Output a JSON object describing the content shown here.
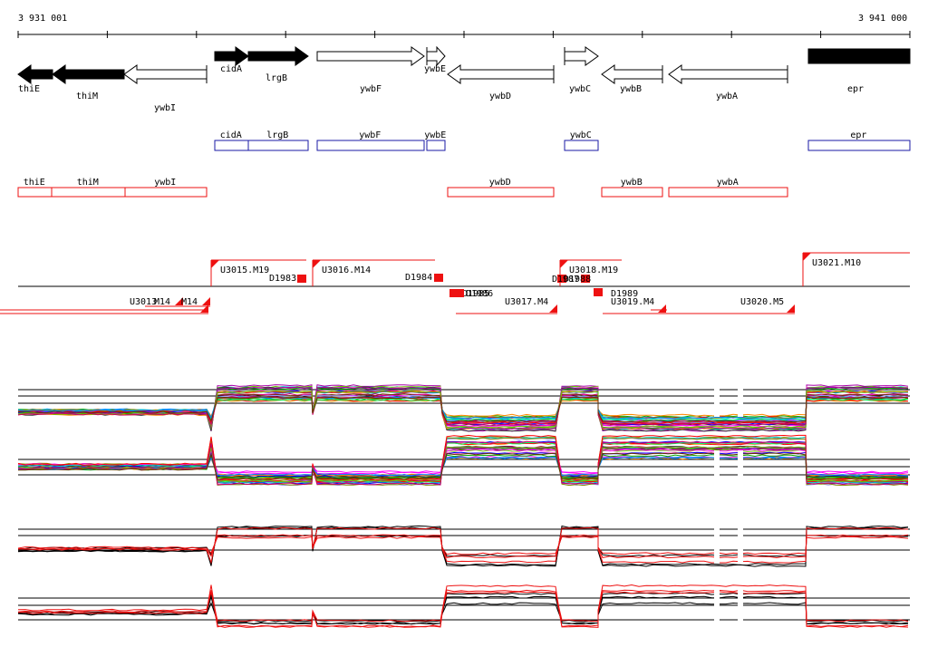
{
  "coords": {
    "start": "3 931 001",
    "end": "3 941 000"
  },
  "colors": {
    "black": "#000000",
    "white": "#ffffff",
    "blue": "#1a1aa6",
    "red": "#ee1111"
  },
  "genes": [
    {
      "name": "thiE",
      "strand": "-",
      "filled": true
    },
    {
      "name": "thiM",
      "strand": "-",
      "filled": true
    },
    {
      "name": "ywbI",
      "strand": "-",
      "filled": false
    },
    {
      "name": "cidA",
      "strand": "+",
      "filled": true
    },
    {
      "name": "lrgB",
      "strand": "+",
      "filled": true
    },
    {
      "name": "ywbF",
      "strand": "+",
      "filled": false
    },
    {
      "name": "ywbE",
      "strand": "+",
      "filled": false
    },
    {
      "name": "ywbD",
      "strand": "-",
      "filled": false
    },
    {
      "name": "ywbC",
      "strand": "+",
      "filled": false
    },
    {
      "name": "ywbB",
      "strand": "-",
      "filled": false
    },
    {
      "name": "ywbA",
      "strand": "-",
      "filled": false
    },
    {
      "name": "epr",
      "strand": "+",
      "filled": true
    }
  ],
  "plus_track_labels": [
    "cidA",
    "lrgB",
    "ywbF",
    "ywbE",
    "ywbC",
    "epr"
  ],
  "minus_track_labels": [
    "thiE",
    "thiM",
    "ywbI",
    "ywbD",
    "ywbB",
    "ywbA"
  ],
  "segments_upper": [
    "U3015.M19",
    "U3016.M14",
    "U3018.M19",
    "U3021.M10"
  ],
  "segments_lower": [
    "U3013",
    "M14",
    "M14",
    "U3017.M4",
    "U3019.M4",
    "U3020.M5"
  ],
  "markers": [
    "D1983",
    "D1984",
    "D1985",
    "D1986",
    "D1987",
    "D1988",
    "D1989"
  ],
  "panels": [
    {
      "id": "plus-strand-all-conditions",
      "style": "multicolor"
    },
    {
      "id": "minus-strand-all-conditions",
      "style": "multicolor"
    },
    {
      "id": "plus-strand-selected",
      "style": "black-red"
    },
    {
      "id": "minus-strand-selected",
      "style": "black-red"
    }
  ]
}
